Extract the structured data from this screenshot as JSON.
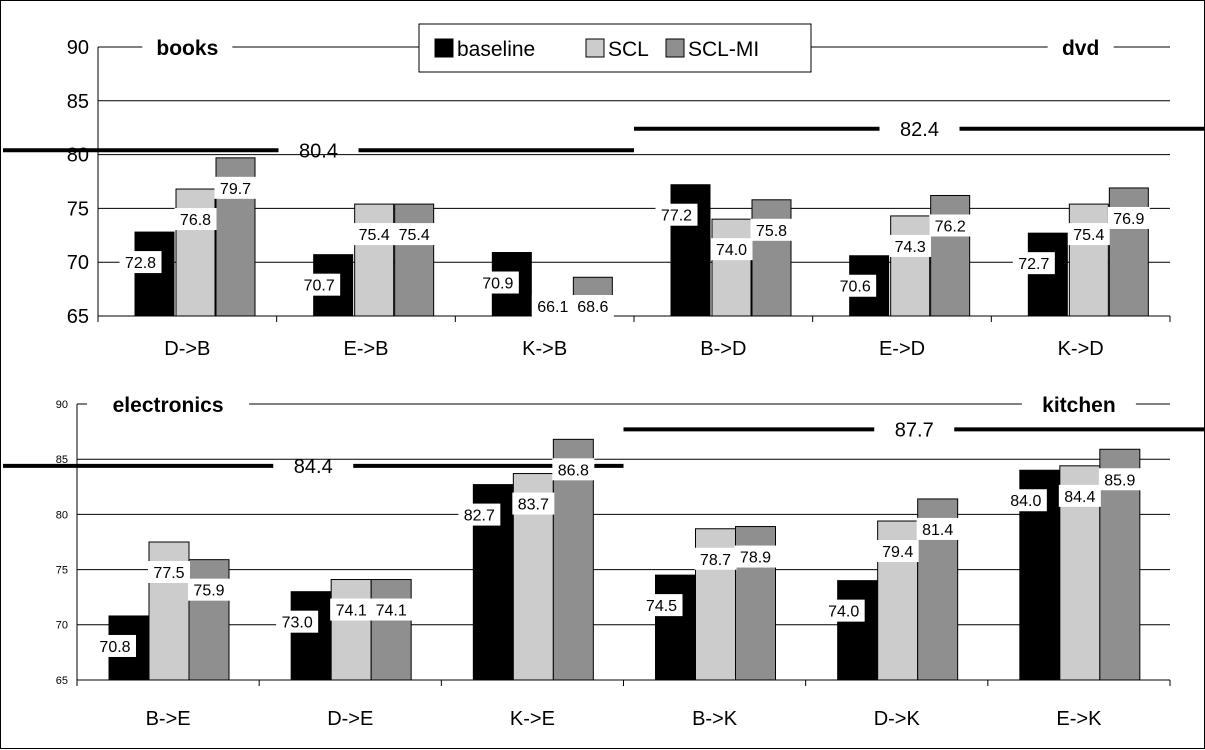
{
  "legend": [
    {
      "label": "baseline",
      "color": "#000000"
    },
    {
      "label": "SCL",
      "color": "#cccccc"
    },
    {
      "label": "SCL-MI",
      "color": "#8f8f8f"
    }
  ],
  "chart_data": [
    {
      "type": "bar",
      "ylim": [
        65,
        90
      ],
      "yticks": [
        65,
        70,
        75,
        80,
        85,
        90
      ],
      "grid": true,
      "categories": [
        "D->B",
        "E->B",
        "K->B",
        "B->D",
        "E->D",
        "K->D"
      ],
      "series": [
        {
          "name": "baseline",
          "values": [
            72.8,
            70.7,
            70.9,
            77.2,
            70.6,
            72.7
          ]
        },
        {
          "name": "SCL",
          "values": [
            76.8,
            75.4,
            66.1,
            74.0,
            74.3,
            75.4
          ]
        },
        {
          "name": "SCL-MI",
          "values": [
            79.7,
            75.4,
            68.6,
            75.8,
            76.2,
            76.9
          ]
        }
      ],
      "domain_labels": [
        {
          "text": "books",
          "category_index": 0
        },
        {
          "text": "dvd",
          "category_index": 5
        }
      ],
      "reference_lines": [
        {
          "value": 80.4,
          "label": "80.4",
          "from_category": 0,
          "to_category": 2
        },
        {
          "value": 82.4,
          "label": "82.4",
          "from_category": 3,
          "to_category": 5
        }
      ]
    },
    {
      "type": "bar",
      "ylim": [
        65,
        90
      ],
      "yticks": [
        65,
        70,
        75,
        80,
        85,
        90
      ],
      "grid": true,
      "categories": [
        "B->E",
        "D->E",
        "K->E",
        "B->K",
        "D->K",
        "E->K"
      ],
      "series": [
        {
          "name": "baseline",
          "values": [
            70.8,
            73.0,
            82.7,
            74.5,
            74.0,
            84.0
          ]
        },
        {
          "name": "SCL",
          "values": [
            77.5,
            74.1,
            83.7,
            78.7,
            79.4,
            84.4
          ]
        },
        {
          "name": "SCL-MI",
          "values": [
            75.9,
            74.1,
            86.8,
            78.9,
            81.4,
            85.9
          ]
        }
      ],
      "domain_labels": [
        {
          "text": "electronics",
          "category_index": 0
        },
        {
          "text": "kitchen",
          "category_index": 5
        }
      ],
      "reference_lines": [
        {
          "value": 84.4,
          "label": "84.4",
          "from_category": 0,
          "to_category": 2
        },
        {
          "value": 87.7,
          "label": "87.7",
          "from_category": 3,
          "to_category": 5
        }
      ]
    }
  ]
}
